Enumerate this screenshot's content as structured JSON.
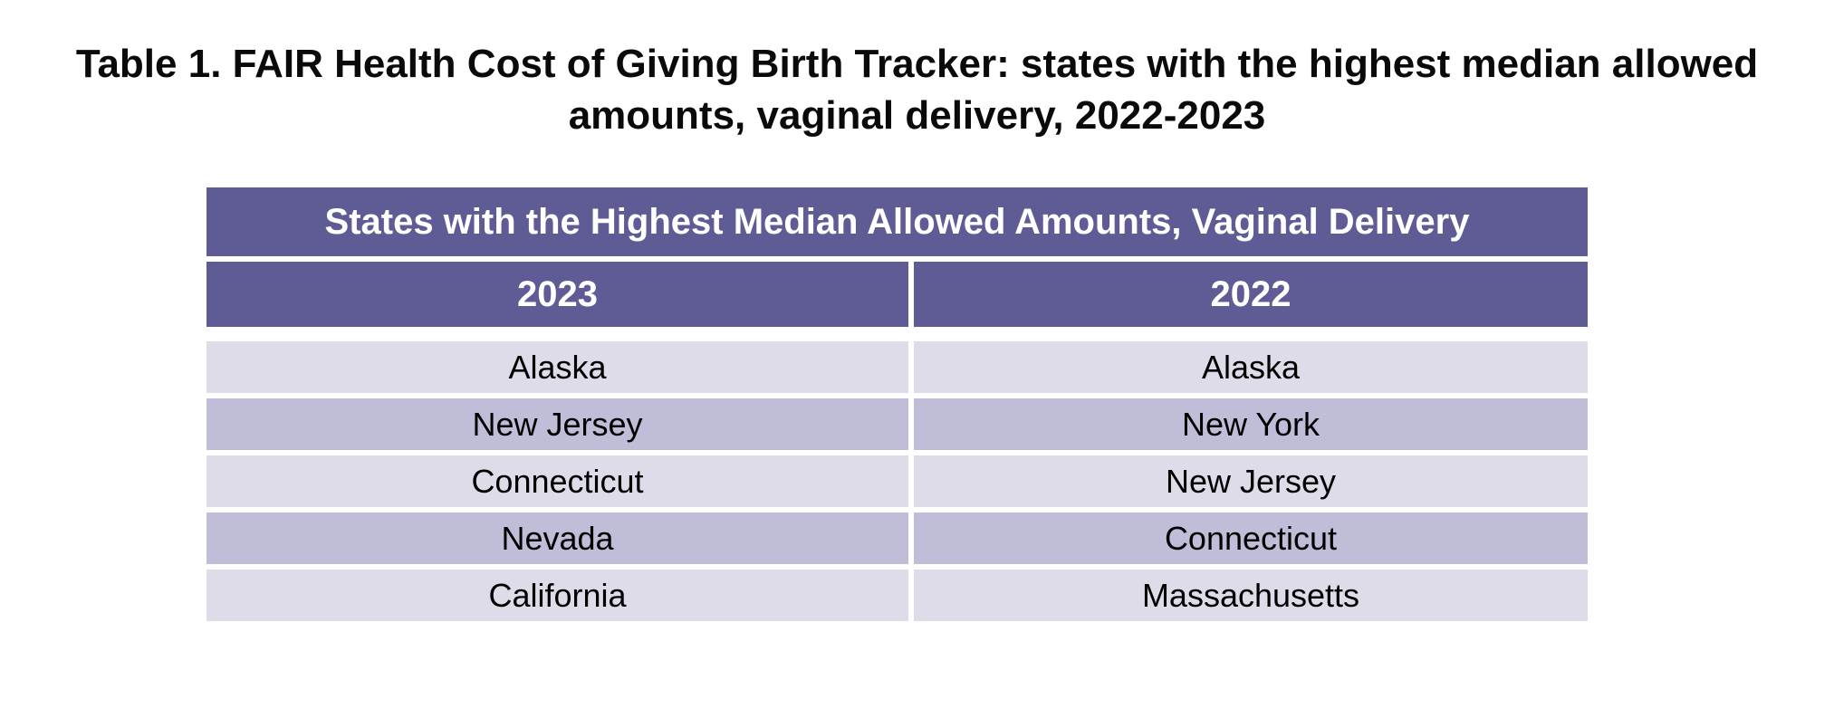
{
  "title": {
    "line1": "Table 1. FAIR Health Cost of Giving Birth Tracker: states with the highest median allowed",
    "line2": "amounts, vaginal delivery, 2022-2023",
    "full": "Table 1. FAIR Health Cost of Giving Birth Tracker: states with the highest median allowed amounts, vaginal delivery, 2022-2023"
  },
  "table": {
    "header": "States with the Highest Median Allowed Amounts, Vaginal Delivery",
    "columns": [
      "2023",
      "2022"
    ],
    "rows": [
      [
        "Alaska",
        "Alaska"
      ],
      [
        "New Jersey",
        "New York"
      ],
      [
        "Connecticut",
        "New Jersey"
      ],
      [
        "Nevada",
        "Connecticut"
      ],
      [
        "California",
        "Massachusetts"
      ]
    ],
    "colors": {
      "header_bg": "#5F5B94",
      "header_text": "#FFFFFF",
      "row_light": "#DDDCE8",
      "row_dark": "#C0BDD8",
      "row_text": "#000000",
      "gutter": "#FFFFFF"
    }
  },
  "chart_data": {
    "type": "table",
    "title": "States with the Highest Median Allowed Amounts, Vaginal Delivery",
    "columns": [
      "2023",
      "2022"
    ],
    "rows": [
      [
        "Alaska",
        "Alaska"
      ],
      [
        "New Jersey",
        "New York"
      ],
      [
        "Connecticut",
        "New Jersey"
      ],
      [
        "Nevada",
        "Connecticut"
      ],
      [
        "California",
        "Massachusetts"
      ]
    ]
  }
}
